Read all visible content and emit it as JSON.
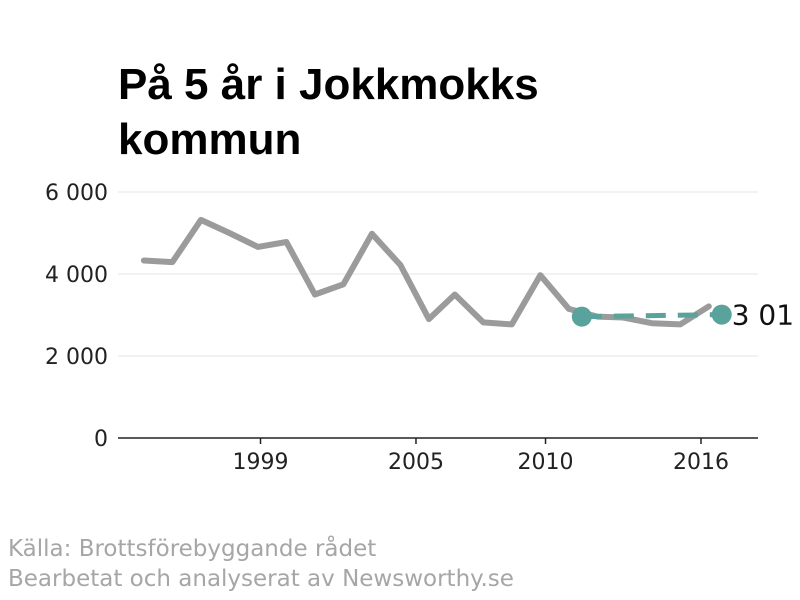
{
  "chart_data": {
    "type": "line",
    "title_lines": [
      "På 5 år i Jokkmokks",
      "kommun"
    ],
    "xlabel": "",
    "ylabel": "",
    "ylim": [
      0,
      6000
    ],
    "y_ticks": [
      {
        "value": 0,
        "label": "0"
      },
      {
        "value": 2000,
        "label": "2 000"
      },
      {
        "value": 4000,
        "label": "4 000"
      },
      {
        "value": 6000,
        "label": "6 000"
      }
    ],
    "x_ticks": [
      {
        "value": 1999,
        "label": "1999"
      },
      {
        "value": 2005,
        "label": "2005"
      },
      {
        "value": 2010,
        "label": "2010"
      },
      {
        "value": 2016,
        "label": "2016"
      }
    ],
    "xlim": [
      1993.5,
      2018.2
    ],
    "series": [
      {
        "x": [
          1994.5,
          1995.6,
          1996.7,
          1997.8,
          1998.9,
          2000.0,
          2001.1,
          2002.2,
          2003.3,
          2004.4,
          2005.5,
          2006.5,
          2007.6,
          2008.7,
          2009.8,
          2010.9,
          2012.0,
          2013.0,
          2014.1,
          2015.2,
          2016.3
        ],
        "values": [
          4330,
          4290,
          5320,
          5000,
          4660,
          4780,
          3500,
          3750,
          4980,
          4220,
          2900,
          3500,
          2820,
          2770,
          3970,
          3150,
          2960,
          2940,
          2800,
          2770,
          3210
        ]
      }
    ],
    "highlight": {
      "start": {
        "x": 2011.4,
        "value": 2960
      },
      "end": {
        "x": 2016.8,
        "value": 3010
      },
      "label": "3 01"
    },
    "colors": {
      "series": "#9b9b9b",
      "highlight": "#5aa29c"
    },
    "grid": true
  },
  "footer": {
    "source": "Källa: Brottsförebyggande rådet",
    "credit": "Bearbetat och analyserat av Newsworthy.se"
  }
}
